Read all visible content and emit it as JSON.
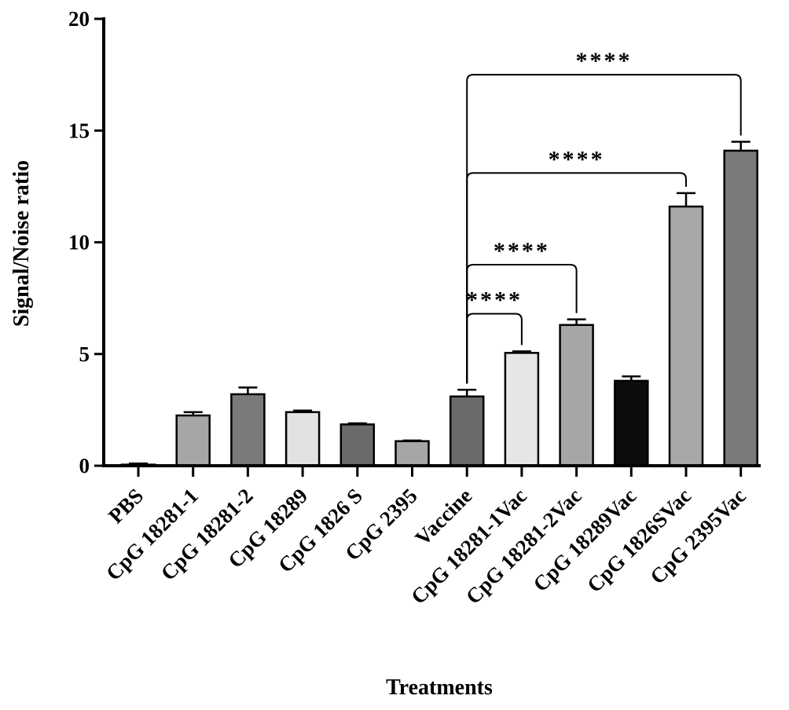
{
  "chart_data": {
    "type": "bar",
    "xlabel": "Treatments",
    "ylabel": "Signal/Noise ratio",
    "ylim": [
      0,
      20
    ],
    "yticks": [
      0,
      5,
      10,
      15,
      20
    ],
    "grid": false,
    "categories": [
      "PBS",
      "CpG 18281-1",
      "CpG 18281-2",
      "CpG 18289",
      "CpG 1826 S",
      "CpG 2395",
      "Vaccine",
      "CpG 18281-1Vac",
      "CpG 18281-2Vac",
      "CpG 18289Vac",
      "CpG 1826SVac",
      "CpG 2395Vac"
    ],
    "values": [
      0.05,
      2.25,
      3.2,
      2.4,
      1.85,
      1.1,
      3.1,
      5.05,
      6.3,
      3.8,
      11.6,
      14.1
    ],
    "errors": [
      0.05,
      0.15,
      0.3,
      0.07,
      0.05,
      0.03,
      0.3,
      0.07,
      0.25,
      0.2,
      0.6,
      0.4
    ],
    "colors": [
      "#8a8a8a",
      "#a6a6a6",
      "#7a7a7a",
      "#e2e2e2",
      "#6a6a6a",
      "#a6a6a6",
      "#6a6a6a",
      "#e6e6e6",
      "#a6a6a6",
      "#0d0d0d",
      "#a8a8a8",
      "#7a7a7a"
    ],
    "significance": [
      {
        "from": 6,
        "to": 7,
        "y": 6.8,
        "label": "****"
      },
      {
        "from": 6,
        "to": 8,
        "y": 9.0,
        "label": "****"
      },
      {
        "from": 6,
        "to": 10,
        "y": 13.1,
        "label": "****"
      },
      {
        "from": 6,
        "to": 11,
        "y": 17.5,
        "label": "****"
      }
    ]
  }
}
